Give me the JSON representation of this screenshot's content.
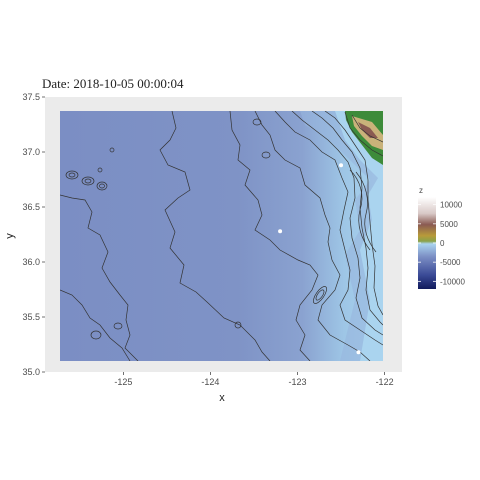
{
  "chart_data": {
    "type": "heatmap",
    "title": "Date: 2018-10-05 00:00:04",
    "xlabel": "x",
    "ylabel": "y",
    "xlim": [
      -125.9,
      -121.8
    ],
    "ylim": [
      35.0,
      37.5
    ],
    "x_ticks": [
      -125,
      -124,
      -123,
      -122
    ],
    "x_tick_labels": [
      "-125",
      "-124",
      "-123",
      "-122"
    ],
    "y_ticks": [
      35.0,
      35.5,
      36.0,
      36.5,
      37.0,
      37.5
    ],
    "y_tick_labels": [
      "35.0",
      "35.5",
      "36.0",
      "36.5",
      "37.0",
      "37.5"
    ],
    "legend": {
      "title": "z",
      "placement": "right",
      "range": [
        -12000,
        12000
      ],
      "ticks": [
        10000,
        5000,
        0,
        -5000,
        -10000
      ],
      "tick_labels": [
        "10000",
        "5000",
        "0",
        "-5000",
        "-10000"
      ]
    },
    "colors": {
      "deep_ocean": "#7b8ec4",
      "shallow_ocean": "#aad4ef",
      "land_low": "#3d8b3a",
      "land_mid": "#c9b27a",
      "land_high": "#ffffff",
      "contour": "#333333",
      "panel_background": "#ebebeb"
    },
    "points": [
      {
        "x": -123.2,
        "y": 36.28
      },
      {
        "x": -122.5,
        "y": 36.88
      },
      {
        "x": -122.3,
        "y": 35.18
      }
    ],
    "grid": false
  }
}
